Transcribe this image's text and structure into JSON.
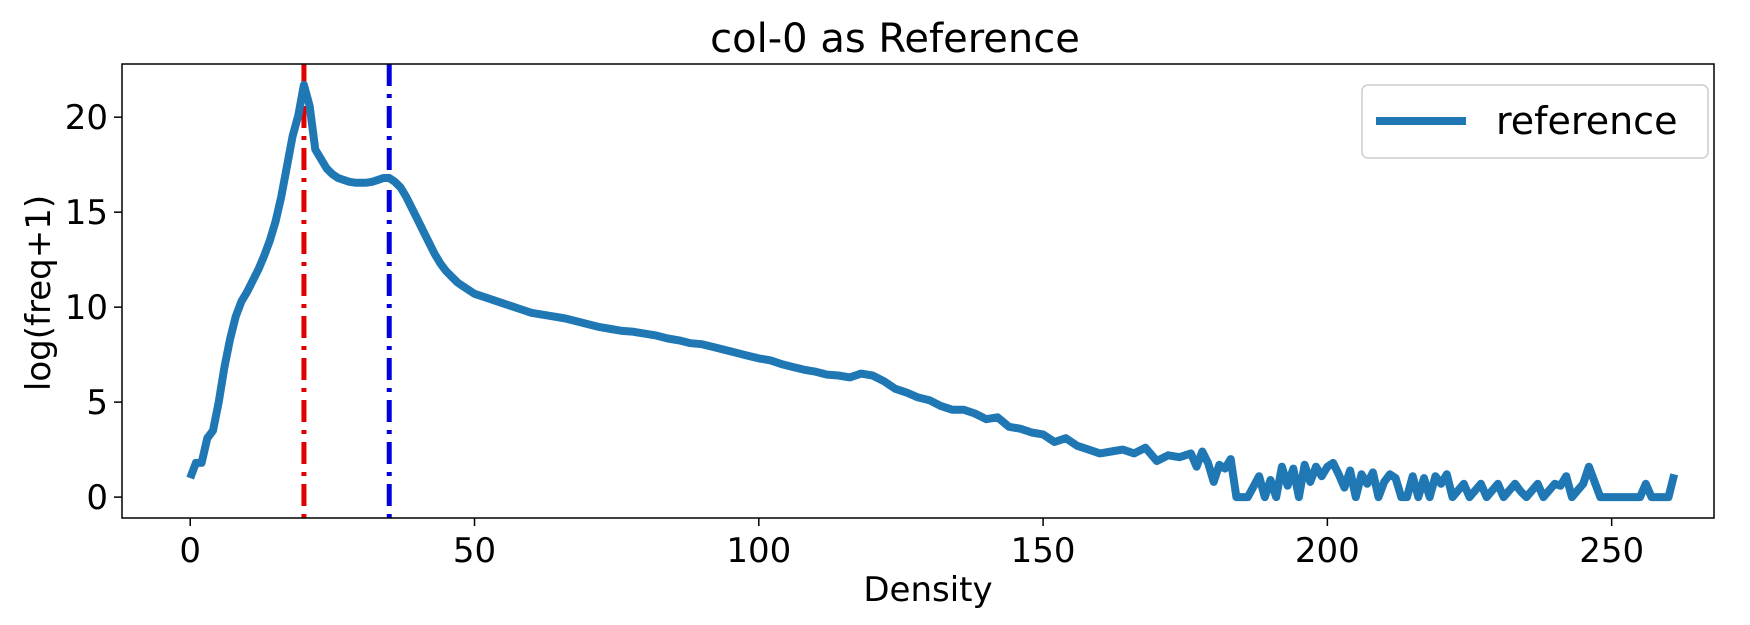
{
  "chart_data": {
    "type": "line",
    "title": "col-0 as Reference",
    "xlabel": "Density",
    "ylabel": "log(freq+1)",
    "xlim": [
      -12,
      268
    ],
    "ylim": [
      -1.1,
      22.8
    ],
    "xticks": [
      0,
      50,
      100,
      150,
      200,
      250
    ],
    "yticks": [
      0,
      5,
      10,
      15,
      20
    ],
    "grid": false,
    "legend_position": "top-right",
    "colors": {
      "series": "#1f77b4",
      "vline_1": "#e00000",
      "vline_2": "#0000e0"
    },
    "vlines": [
      {
        "x": 20,
        "style": "dashdot",
        "color": "#e00000"
      },
      {
        "x": 35,
        "style": "dashdot",
        "color": "#0000e0"
      }
    ],
    "series": [
      {
        "name": "reference",
        "points": [
          [
            0,
            1.0
          ],
          [
            1,
            1.8
          ],
          [
            2,
            1.8
          ],
          [
            3,
            3.1
          ],
          [
            4,
            3.5
          ],
          [
            5,
            5.0
          ],
          [
            6,
            6.8
          ],
          [
            7,
            8.3
          ],
          [
            8,
            9.5
          ],
          [
            9,
            10.3
          ],
          [
            10,
            10.8
          ],
          [
            11,
            11.4
          ],
          [
            12,
            12.0
          ],
          [
            13,
            12.7
          ],
          [
            14,
            13.5
          ],
          [
            15,
            14.5
          ],
          [
            16,
            15.8
          ],
          [
            17,
            17.4
          ],
          [
            18,
            19.0
          ],
          [
            19,
            20.1
          ],
          [
            20,
            21.7
          ],
          [
            21,
            20.6
          ],
          [
            22,
            18.3
          ],
          [
            23,
            17.8
          ],
          [
            24,
            17.3
          ],
          [
            25,
            17.0
          ],
          [
            26,
            16.8
          ],
          [
            27,
            16.7
          ],
          [
            28,
            16.6
          ],
          [
            29,
            16.55
          ],
          [
            30,
            16.55
          ],
          [
            31,
            16.55
          ],
          [
            32,
            16.6
          ],
          [
            33,
            16.7
          ],
          [
            34,
            16.8
          ],
          [
            35,
            16.8
          ],
          [
            36,
            16.6
          ],
          [
            37,
            16.3
          ],
          [
            38,
            15.8
          ],
          [
            39,
            15.2
          ],
          [
            40,
            14.6
          ],
          [
            41,
            14.0
          ],
          [
            42,
            13.4
          ],
          [
            43,
            12.8
          ],
          [
            44,
            12.3
          ],
          [
            45,
            11.9
          ],
          [
            46,
            11.6
          ],
          [
            47,
            11.3
          ],
          [
            48,
            11.1
          ],
          [
            49,
            10.9
          ],
          [
            50,
            10.7
          ],
          [
            52,
            10.5
          ],
          [
            54,
            10.3
          ],
          [
            56,
            10.1
          ],
          [
            58,
            9.9
          ],
          [
            60,
            9.7
          ],
          [
            62,
            9.6
          ],
          [
            64,
            9.5
          ],
          [
            66,
            9.4
          ],
          [
            68,
            9.25
          ],
          [
            70,
            9.1
          ],
          [
            72,
            8.95
          ],
          [
            74,
            8.85
          ],
          [
            76,
            8.75
          ],
          [
            78,
            8.7
          ],
          [
            80,
            8.6
          ],
          [
            82,
            8.5
          ],
          [
            84,
            8.35
          ],
          [
            86,
            8.25
          ],
          [
            88,
            8.1
          ],
          [
            90,
            8.05
          ],
          [
            92,
            7.9
          ],
          [
            94,
            7.75
          ],
          [
            96,
            7.6
          ],
          [
            98,
            7.45
          ],
          [
            100,
            7.3
          ],
          [
            102,
            7.2
          ],
          [
            104,
            7.0
          ],
          [
            106,
            6.85
          ],
          [
            108,
            6.7
          ],
          [
            110,
            6.6
          ],
          [
            112,
            6.45
          ],
          [
            114,
            6.4
          ],
          [
            116,
            6.3
          ],
          [
            118,
            6.5
          ],
          [
            120,
            6.4
          ],
          [
            122,
            6.1
          ],
          [
            124,
            5.7
          ],
          [
            126,
            5.5
          ],
          [
            128,
            5.25
          ],
          [
            130,
            5.1
          ],
          [
            132,
            4.8
          ],
          [
            134,
            4.6
          ],
          [
            136,
            4.6
          ],
          [
            138,
            4.4
          ],
          [
            140,
            4.1
          ],
          [
            142,
            4.2
          ],
          [
            144,
            3.7
          ],
          [
            146,
            3.6
          ],
          [
            148,
            3.4
          ],
          [
            150,
            3.3
          ],
          [
            152,
            2.9
          ],
          [
            154,
            3.1
          ],
          [
            156,
            2.7
          ],
          [
            158,
            2.5
          ],
          [
            160,
            2.3
          ],
          [
            162,
            2.4
          ],
          [
            164,
            2.5
          ],
          [
            166,
            2.3
          ],
          [
            168,
            2.6
          ],
          [
            170,
            1.9
          ],
          [
            172,
            2.2
          ],
          [
            174,
            2.1
          ],
          [
            176,
            2.3
          ],
          [
            177,
            1.6
          ],
          [
            178,
            2.4
          ],
          [
            179,
            1.8
          ],
          [
            180,
            0.8
          ],
          [
            181,
            1.7
          ],
          [
            182,
            1.5
          ],
          [
            183,
            2.0
          ],
          [
            184,
            0.0
          ],
          [
            186,
            0.0
          ],
          [
            188,
            1.1
          ],
          [
            189,
            0.0
          ],
          [
            190,
            0.9
          ],
          [
            191,
            0.0
          ],
          [
            192,
            1.6
          ],
          [
            193,
            0.6
          ],
          [
            194,
            1.5
          ],
          [
            195,
            0.0
          ],
          [
            196,
            1.7
          ],
          [
            197,
            0.8
          ],
          [
            198,
            1.6
          ],
          [
            199,
            1.1
          ],
          [
            200,
            1.6
          ],
          [
            201,
            1.8
          ],
          [
            202,
            1.2
          ],
          [
            203,
            0.5
          ],
          [
            204,
            1.4
          ],
          [
            205,
            0.0
          ],
          [
            206,
            1.2
          ],
          [
            207,
            0.7
          ],
          [
            208,
            1.3
          ],
          [
            209,
            0.0
          ],
          [
            210,
            0.8
          ],
          [
            211,
            1.2
          ],
          [
            212,
            1.0
          ],
          [
            213,
            0.0
          ],
          [
            214,
            0.0
          ],
          [
            215,
            1.1
          ],
          [
            216,
            0.0
          ],
          [
            217,
            1.0
          ],
          [
            218,
            0.0
          ],
          [
            219,
            1.1
          ],
          [
            220,
            0.7
          ],
          [
            221,
            1.2
          ],
          [
            222,
            0.0
          ],
          [
            224,
            0.7
          ],
          [
            225,
            0.0
          ],
          [
            227,
            0.7
          ],
          [
            228,
            0.0
          ],
          [
            230,
            0.7
          ],
          [
            231,
            0.0
          ],
          [
            233,
            0.7
          ],
          [
            234,
            0.3
          ],
          [
            235,
            0.0
          ],
          [
            237,
            0.7
          ],
          [
            238,
            0.0
          ],
          [
            240,
            0.7
          ],
          [
            241,
            0.6
          ],
          [
            242,
            1.1
          ],
          [
            243,
            0.0
          ],
          [
            245,
            0.7
          ],
          [
            246,
            1.6
          ],
          [
            247,
            0.8
          ],
          [
            248,
            0.0
          ],
          [
            250,
            0.0
          ],
          [
            252,
            0.0
          ],
          [
            254,
            0.0
          ],
          [
            255,
            0.0
          ],
          [
            256,
            0.7
          ],
          [
            257,
            0.0
          ],
          [
            259,
            0.0
          ],
          [
            260,
            0.0
          ],
          [
            261,
            1.2
          ]
        ]
      }
    ]
  }
}
